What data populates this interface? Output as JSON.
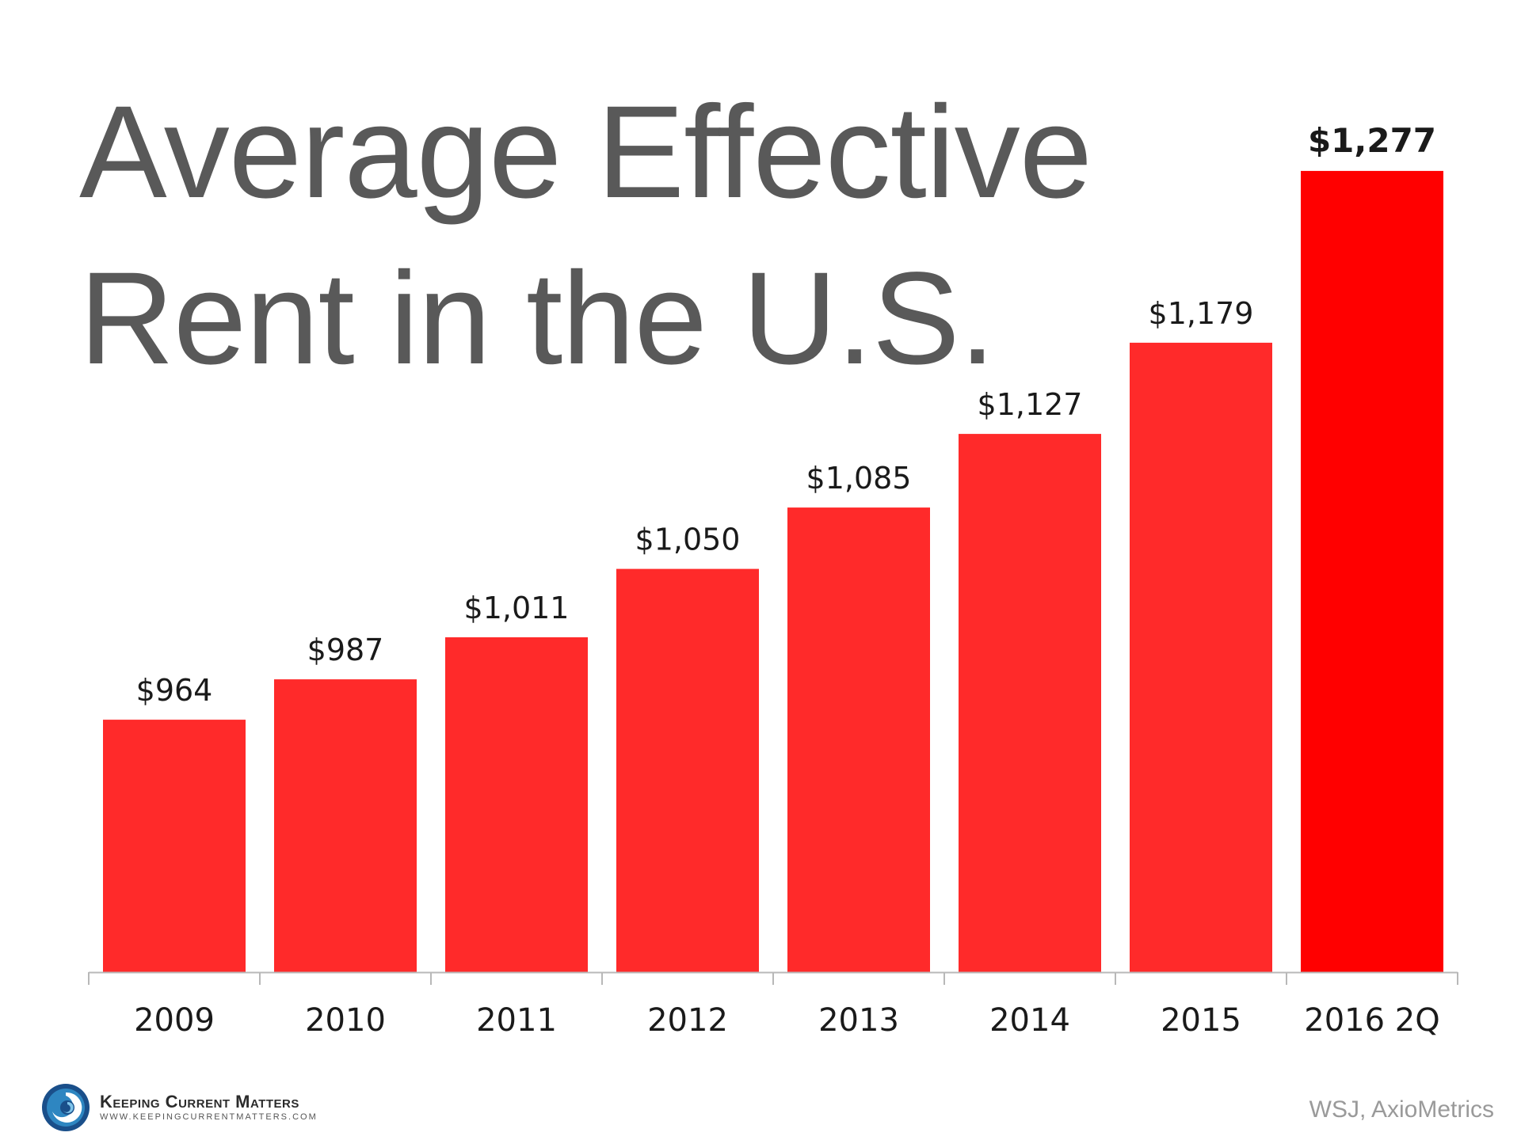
{
  "title_lines": [
    "Average Effective",
    "Rent in the U.S."
  ],
  "chart_data": {
    "type": "bar",
    "title": "Average Effective Rent in the U.S.",
    "categories": [
      "2009",
      "2010",
      "2011",
      "2012",
      "2013",
      "2014",
      "2015",
      "2016 2Q"
    ],
    "values": [
      964,
      987,
      1011,
      1050,
      1085,
      1127,
      1179,
      1277
    ],
    "value_labels": [
      "$964",
      "$987",
      "$1,011",
      "$1,050",
      "$1,085",
      "$1,127",
      "$1,179",
      "$1,277"
    ],
    "xlabel": "",
    "ylabel": "",
    "ylim": [
      820,
      1295
    ],
    "grid": false,
    "legend": "none",
    "highlight_index": 7,
    "bar_color": "#ff2a2a",
    "highlight_color": "#ff0000",
    "axis_color": "#b8b8b8"
  },
  "logo": {
    "name": "Keeping Current Matters",
    "url": "WWW.KEEPINGCURRENTMATTERS.COM",
    "icon": "keeping-current-matters-swirl-icon"
  },
  "source": "WSJ, AxioMetrics"
}
